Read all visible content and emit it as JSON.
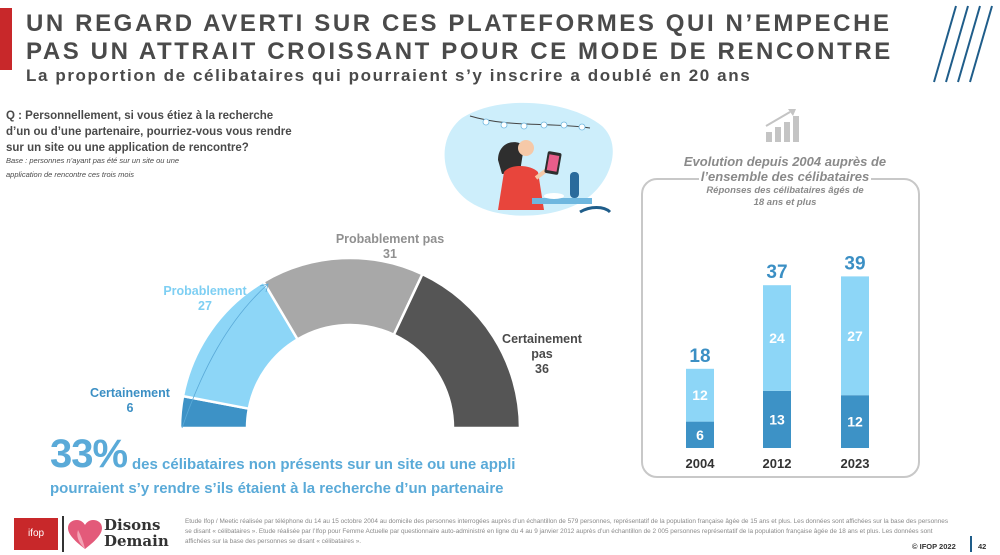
{
  "header": {
    "title": "UN REGARD AVERTI SUR CES PLATEFORMES QUI N’EMPECHE PAS UN ATTRAIT CROISSANT POUR CE MODE DE RENCONTRE",
    "subtitle": "La proportion de célibataires qui pourraient s’y inscrire a doublé en 20 ans"
  },
  "question": {
    "text": "Q : Personnellement, si vous étiez à la recherche d’un ou d’une partenaire, pourriez-vous vous rendre sur un site ou une application de rencontre?",
    "base_line1": "Base : personnes n’ayant pas été sur un site ou une",
    "base_line2": "application de rencontre ces trois mois"
  },
  "kpi": {
    "percent": "33%",
    "line1": "des célibataires non présents sur un site ou une appli",
    "line2": "pourraient s’y rendre s’ils étaient à la recherche d’un partenaire"
  },
  "right_panel": {
    "title_line1": "Evolution depuis 2004 auprès de",
    "title_line2": "l’ensemble des célibataires",
    "sub_line1": "Réponses des célibataires âgés de",
    "sub_line2": "18 ans et plus"
  },
  "colors": {
    "certainement": "#3d92c6",
    "probablement": "#8dd6f7",
    "probablement_pas": "#a8a8a8",
    "certainement_pas": "#555555",
    "accent": "#c8282a",
    "kpi": "#5aaad8"
  },
  "chart_data": [
    {
      "type": "pie",
      "style": "half-donut",
      "categories": [
        "Certainement",
        "Probablement",
        "Probablement pas",
        "Certainement pas"
      ],
      "values": [
        6,
        27,
        31,
        36
      ],
      "label_lines": [
        [
          "Certainement"
        ],
        [
          "Probablement"
        ],
        [
          "Probablement pas"
        ],
        [
          "Certainement",
          "pas"
        ]
      ]
    },
    {
      "type": "bar",
      "stacked": true,
      "categories": [
        "2004",
        "2012",
        "2023"
      ],
      "series": [
        {
          "values": [
            6,
            13,
            12
          ]
        },
        {
          "values": [
            12,
            24,
            27
          ]
        }
      ],
      "totals": [
        18,
        37,
        39
      ]
    }
  ],
  "footer": {
    "ifop_logo": "ifop",
    "partner_logo_line1": "Disons",
    "partner_logo_line2": "Demain",
    "source": "Etude Ifop / Meetic réalisée par téléphone du 14 au 15 octobre 2004 au domicile des personnes interrogées auprès d’un échantillon de 579 personnes, représentatif de la population française âgée de 15 ans et plus. Les données sont affichées sur la base des personnes se disant « célibataires ». Etude réalisée par l’Ifop pour Femme Actuelle par questionnaire auto-administré en ligne du 4 au 9 janvier 2012 auprès d’un échantillon de 2 005 personnes représentatif de la population française âgée de 18 ans et plus. Les données sont affichées sur la base des personnes se disant « célibataires ».",
    "copyright": "© IFOP 2022",
    "page": "42"
  }
}
